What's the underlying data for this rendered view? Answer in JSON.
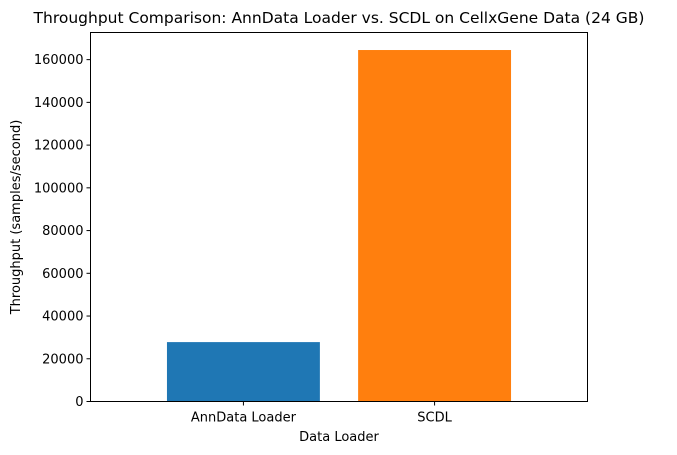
{
  "chart_data": {
    "type": "bar",
    "title": "Throughput Comparison: AnnData Loader vs. SCDL on CellxGene Data (24 GB)",
    "xlabel": "Data Loader",
    "ylabel": "Throughput (samples/second)",
    "categories": [
      "AnnData Loader",
      "SCDL"
    ],
    "values": [
      27800,
      164500
    ],
    "colors": [
      "#1f77b4",
      "#ff7f0e"
    ],
    "ylim": [
      0,
      172700
    ],
    "yticks": [
      0,
      20000,
      40000,
      60000,
      80000,
      100000,
      120000,
      140000,
      160000
    ],
    "grid": false,
    "legend": false
  }
}
